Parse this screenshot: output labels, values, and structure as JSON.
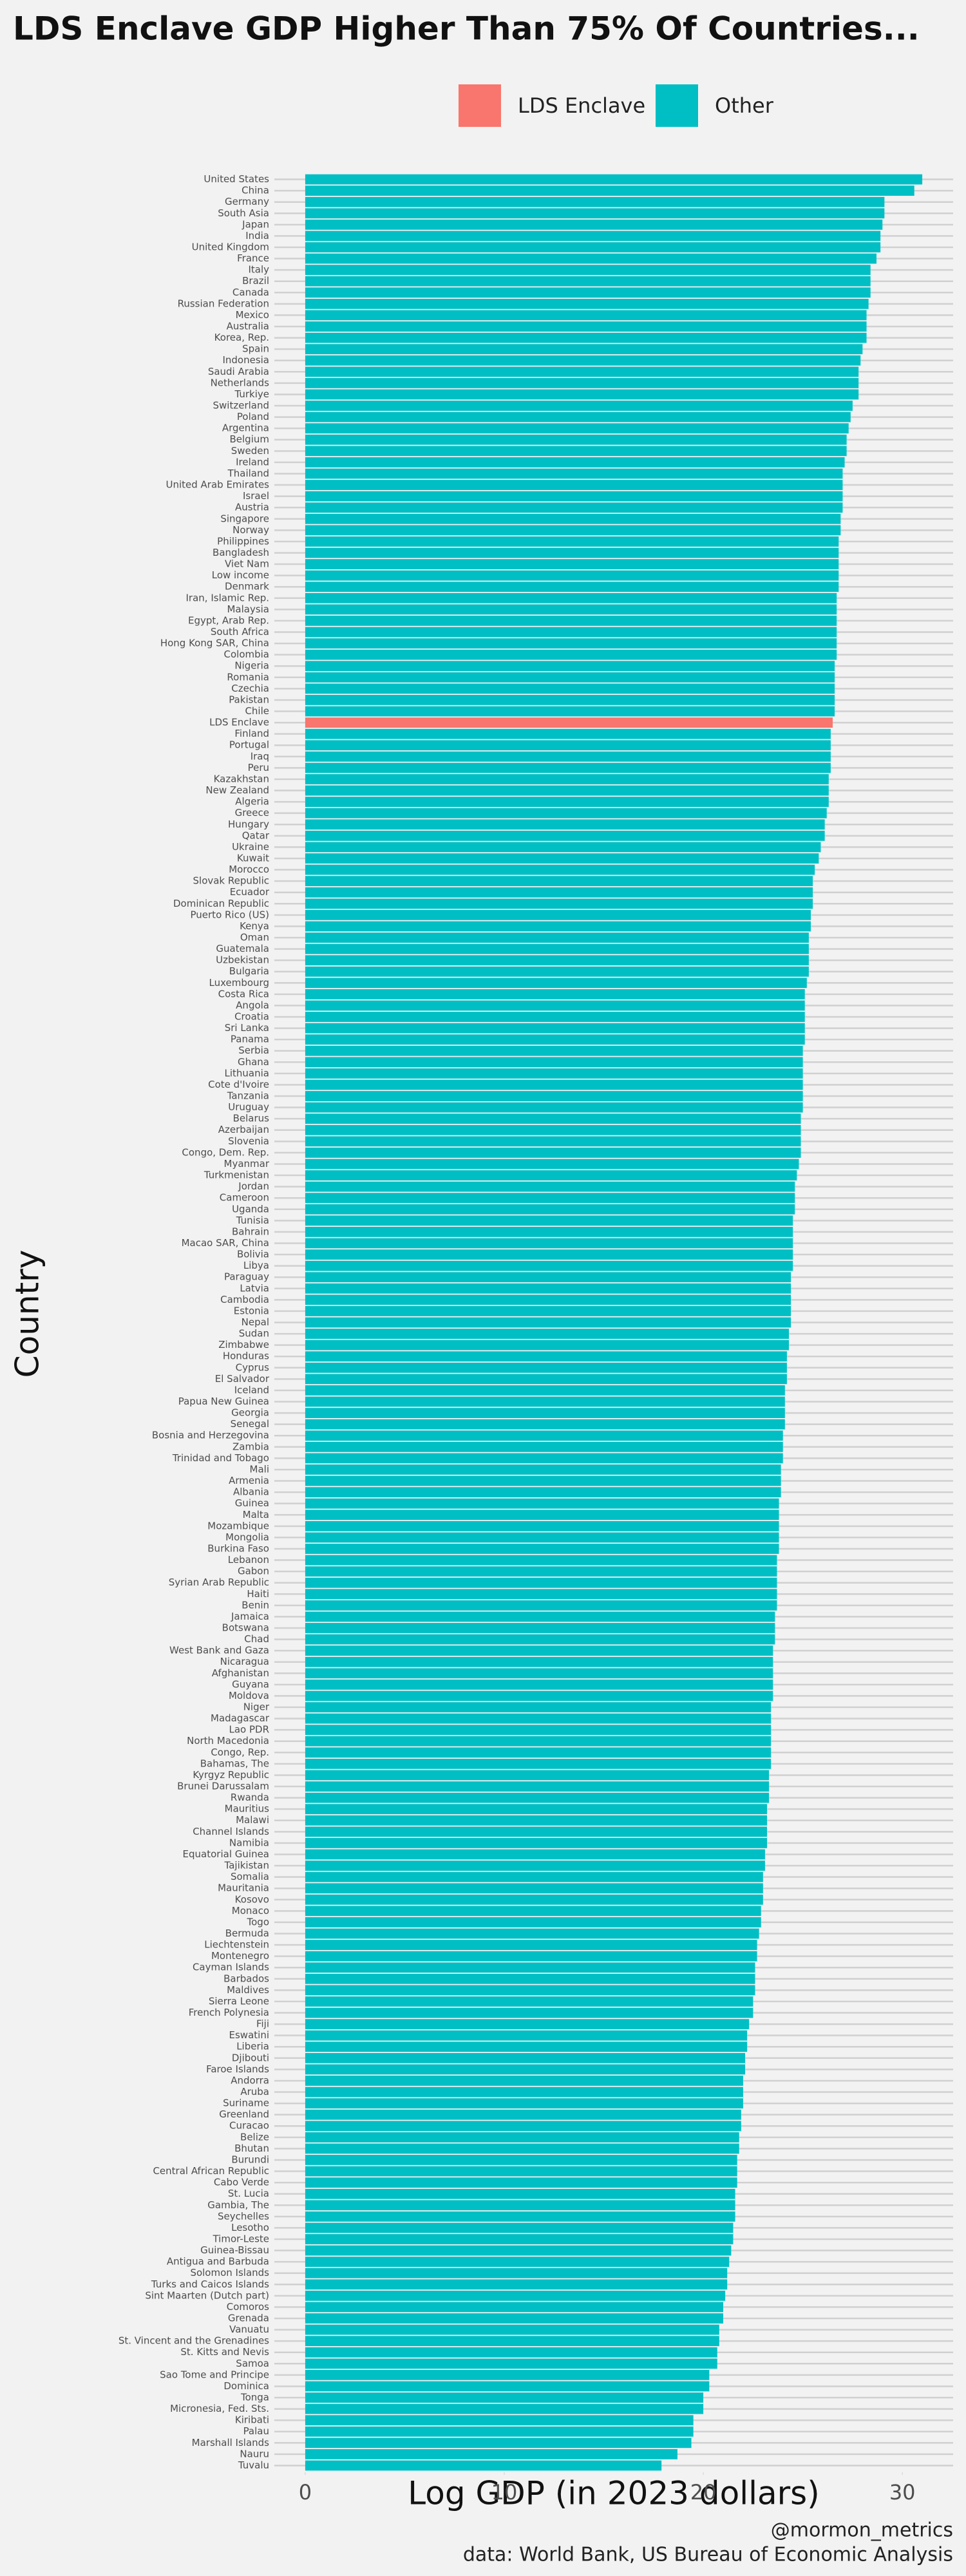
{
  "chart_data": {
    "type": "bar",
    "orientation": "horizontal",
    "title": "LDS Enclave GDP Higher Than 75% Of Countries...",
    "x_label": "Log GDP (in 2023 dollars)",
    "y_label": "Country",
    "caption": [
      "@mormon_metrics",
      "data: World Bank, US Bureau of Economic Analysis"
    ],
    "categories": [
      "United States",
      "China",
      "Germany",
      "South Asia",
      "Japan",
      "India",
      "United Kingdom",
      "France",
      "Italy",
      "Brazil",
      "Canada",
      "Russian Federation",
      "Mexico",
      "Australia",
      "Korea, Rep.",
      "Spain",
      "Indonesia",
      "Saudi Arabia",
      "Netherlands",
      "Turkiye",
      "Switzerland",
      "Poland",
      "Argentina",
      "Belgium",
      "Sweden",
      "Ireland",
      "Thailand",
      "United Arab Emirates",
      "Israel",
      "Austria",
      "Singapore",
      "Norway",
      "Philippines",
      "Bangladesh",
      "Viet Nam",
      "Low income",
      "Denmark",
      "Iran, Islamic Rep.",
      "Malaysia",
      "Egypt, Arab Rep.",
      "South Africa",
      "Hong Kong SAR, China",
      "Colombia",
      "Nigeria",
      "Romania",
      "Czechia",
      "Pakistan",
      "Chile",
      "LDS Enclave",
      "Finland",
      "Portugal",
      "Iraq",
      "Peru",
      "Kazakhstan",
      "New Zealand",
      "Algeria",
      "Greece",
      "Hungary",
      "Qatar",
      "Ukraine",
      "Kuwait",
      "Morocco",
      "Slovak Republic",
      "Ecuador",
      "Dominican Republic",
      "Puerto Rico (US)",
      "Kenya",
      "Oman",
      "Guatemala",
      "Uzbekistan",
      "Bulgaria",
      "Luxembourg",
      "Costa Rica",
      "Angola",
      "Croatia",
      "Sri Lanka",
      "Panama",
      "Serbia",
      "Ghana",
      "Lithuania",
      "Cote d'Ivoire",
      "Tanzania",
      "Uruguay",
      "Belarus",
      "Azerbaijan",
      "Slovenia",
      "Congo, Dem. Rep.",
      "Myanmar",
      "Turkmenistan",
      "Jordan",
      "Cameroon",
      "Uganda",
      "Tunisia",
      "Bahrain",
      "Macao SAR, China",
      "Bolivia",
      "Libya",
      "Paraguay",
      "Latvia",
      "Cambodia",
      "Estonia",
      "Nepal",
      "Sudan",
      "Zimbabwe",
      "Honduras",
      "Cyprus",
      "El Salvador",
      "Iceland",
      "Papua New Guinea",
      "Georgia",
      "Senegal",
      "Bosnia and Herzegovina",
      "Zambia",
      "Trinidad and Tobago",
      "Mali",
      "Armenia",
      "Albania",
      "Guinea",
      "Malta",
      "Mozambique",
      "Mongolia",
      "Burkina Faso",
      "Lebanon",
      "Gabon",
      "Syrian Arab Republic",
      "Haiti",
      "Benin",
      "Jamaica",
      "Botswana",
      "Chad",
      "West Bank and Gaza",
      "Nicaragua",
      "Afghanistan",
      "Guyana",
      "Moldova",
      "Niger",
      "Madagascar",
      "Lao PDR",
      "North Macedonia",
      "Congo, Rep.",
      "Bahamas, The",
      "Kyrgyz Republic",
      "Brunei Darussalam",
      "Rwanda",
      "Mauritius",
      "Malawi",
      "Channel Islands",
      "Namibia",
      "Equatorial Guinea",
      "Tajikistan",
      "Somalia",
      "Mauritania",
      "Kosovo",
      "Monaco",
      "Togo",
      "Bermuda",
      "Liechtenstein",
      "Montenegro",
      "Cayman Islands",
      "Barbados",
      "Maldives",
      "Sierra Leone",
      "French Polynesia",
      "Fiji",
      "Eswatini",
      "Liberia",
      "Djibouti",
      "Faroe Islands",
      "Andorra",
      "Aruba",
      "Suriname",
      "Greenland",
      "Curacao",
      "Belize",
      "Bhutan",
      "Burundi",
      "Central African Republic",
      "Cabo Verde",
      "St. Lucia",
      "Gambia, The",
      "Seychelles",
      "Lesotho",
      "Timor-Leste",
      "Guinea-Bissau",
      "Antigua and Barbuda",
      "Solomon Islands",
      "Turks and Caicos Islands",
      "Sint Maarten (Dutch part)",
      "Comoros",
      "Grenada",
      "Vanuatu",
      "St. Vincent and the Grenadines",
      "St. Kitts and Nevis",
      "Samoa",
      "Sao Tome and Principe",
      "Dominica",
      "Tonga",
      "Micronesia, Fed. Sts.",
      "Kiribati",
      "Palau",
      "Marshall Islands",
      "Nauru",
      "Tuvalu"
    ],
    "series": [
      {
        "name": "LDS Enclave",
        "color": "#F8766D",
        "values": [
          null,
          null,
          null,
          null,
          null,
          null,
          null,
          null,
          null,
          null,
          null,
          null,
          null,
          null,
          null,
          null,
          null,
          null,
          null,
          null,
          null,
          null,
          null,
          null,
          null,
          null,
          null,
          null,
          null,
          null,
          null,
          null,
          null,
          null,
          null,
          null,
          null,
          null,
          null,
          null,
          null,
          null,
          null,
          null,
          null,
          null,
          null,
          null,
          26.5,
          null,
          null,
          null,
          null,
          null,
          null,
          null,
          null,
          null,
          null,
          null,
          null,
          null,
          null,
          null,
          null,
          null,
          null,
          null,
          null,
          null,
          null,
          null,
          null,
          null,
          null,
          null,
          null,
          null,
          null,
          null,
          null,
          null,
          null,
          null,
          null,
          null,
          null,
          null,
          null,
          null,
          null,
          null,
          null,
          null,
          null,
          null,
          null,
          null,
          null,
          null,
          null,
          null,
          null,
          null,
          null,
          null,
          null,
          null,
          null,
          null,
          null,
          null,
          null,
          null,
          null,
          null,
          null,
          null,
          null,
          null,
          null,
          null,
          null,
          null,
          null,
          null,
          null,
          null,
          null,
          null,
          null,
          null,
          null,
          null,
          null,
          null,
          null,
          null,
          null,
          null,
          null,
          null,
          null,
          null,
          null,
          null,
          null,
          null,
          null,
          null,
          null,
          null,
          null,
          null,
          null,
          null,
          null,
          null,
          null,
          null,
          null,
          null,
          null,
          null,
          null,
          null,
          null,
          null,
          null,
          null,
          null,
          null,
          null,
          null,
          null,
          null,
          null,
          null,
          null,
          null,
          null,
          null,
          null,
          null,
          null,
          null,
          null,
          null,
          null,
          null,
          null,
          null,
          null,
          null,
          null,
          null,
          null,
          null,
          null,
          null,
          null,
          null,
          null
        ]
      },
      {
        "name": "Other",
        "color": "#00BFC4",
        "values": [
          31.0,
          30.6,
          29.1,
          29.1,
          29.0,
          28.9,
          28.9,
          28.7,
          28.4,
          28.4,
          28.4,
          28.3,
          28.2,
          28.2,
          28.2,
          28.0,
          27.9,
          27.8,
          27.8,
          27.8,
          27.5,
          27.4,
          27.3,
          27.2,
          27.2,
          27.1,
          27.0,
          27.0,
          27.0,
          27.0,
          26.9,
          26.9,
          26.8,
          26.8,
          26.8,
          26.8,
          26.8,
          26.7,
          26.7,
          26.7,
          26.7,
          26.7,
          26.7,
          26.6,
          26.6,
          26.6,
          26.6,
          26.6,
          null,
          26.4,
          26.4,
          26.4,
          26.4,
          26.3,
          26.3,
          26.3,
          26.2,
          26.1,
          26.1,
          25.9,
          25.8,
          25.6,
          25.5,
          25.5,
          25.5,
          25.4,
          25.4,
          25.3,
          25.3,
          25.3,
          25.3,
          25.2,
          25.1,
          25.1,
          25.1,
          25.1,
          25.1,
          25.0,
          25.0,
          25.0,
          25.0,
          25.0,
          25.0,
          24.9,
          24.9,
          24.9,
          24.9,
          24.8,
          24.7,
          24.6,
          24.6,
          24.6,
          24.5,
          24.5,
          24.5,
          24.5,
          24.5,
          24.4,
          24.4,
          24.4,
          24.4,
          24.4,
          24.3,
          24.3,
          24.2,
          24.2,
          24.2,
          24.1,
          24.1,
          24.1,
          24.1,
          24.0,
          24.0,
          24.0,
          23.9,
          23.9,
          23.9,
          23.8,
          23.8,
          23.8,
          23.8,
          23.8,
          23.7,
          23.7,
          23.7,
          23.7,
          23.7,
          23.6,
          23.6,
          23.6,
          23.5,
          23.5,
          23.5,
          23.5,
          23.5,
          23.4,
          23.4,
          23.4,
          23.4,
          23.4,
          23.4,
          23.3,
          23.3,
          23.3,
          23.2,
          23.2,
          23.2,
          23.2,
          23.1,
          23.1,
          23.0,
          23.0,
          23.0,
          22.9,
          22.9,
          22.8,
          22.7,
          22.7,
          22.6,
          22.6,
          22.6,
          22.5,
          22.5,
          22.3,
          22.2,
          22.2,
          22.1,
          22.1,
          22.0,
          22.0,
          22.0,
          21.9,
          21.9,
          21.8,
          21.8,
          21.7,
          21.7,
          21.7,
          21.6,
          21.6,
          21.6,
          21.5,
          21.5,
          21.4,
          21.3,
          21.2,
          21.2,
          21.1,
          21.0,
          21.0,
          20.8,
          20.8,
          20.7,
          20.7,
          20.3,
          20.3,
          20.0,
          20.0,
          19.5,
          19.5,
          19.4,
          18.7,
          17.9
        ]
      }
    ],
    "xlim": [
      -1.55,
      32.55
    ],
    "xticks": [
      0,
      10,
      20,
      30
    ],
    "grid": true,
    "legend_position": "top"
  }
}
